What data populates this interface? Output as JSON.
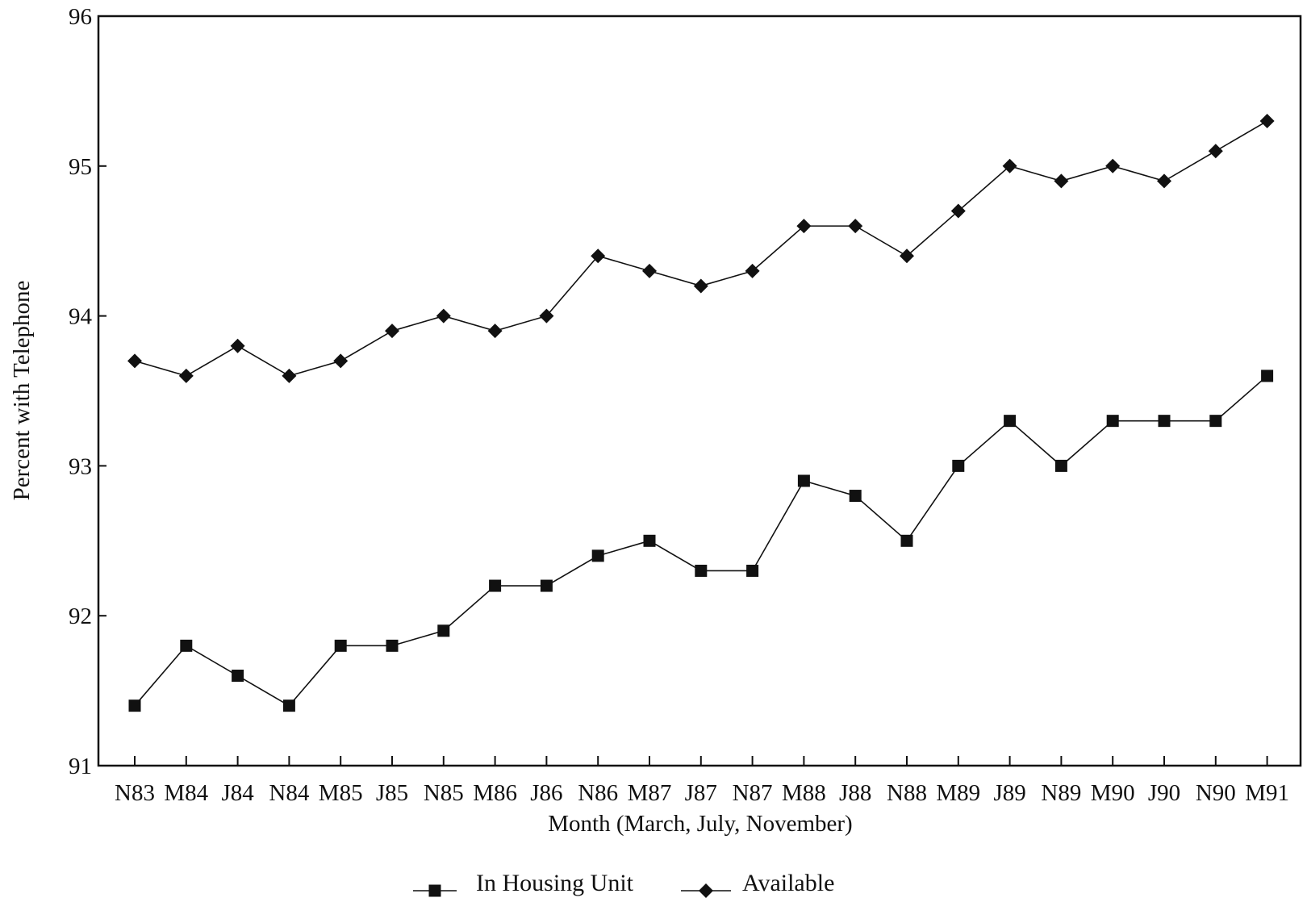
{
  "chart_data": {
    "type": "line",
    "title": "",
    "xlabel": "Month (March, July, November)",
    "ylabel": "Percent with Telephone",
    "ylim": [
      91,
      96
    ],
    "yticks": [
      "91",
      "92",
      "93",
      "94",
      "95",
      "96"
    ],
    "categories": [
      "N83",
      "M84",
      "J84",
      "N84",
      "M85",
      "J85",
      "N85",
      "M86",
      "J86",
      "N86",
      "M87",
      "J87",
      "N87",
      "M88",
      "J88",
      "N88",
      "M89",
      "J89",
      "N89",
      "M90",
      "J90",
      "N90",
      "M91"
    ],
    "series": [
      {
        "name": "In Housing Unit",
        "marker": "square",
        "color": "#111111",
        "values": [
          91.4,
          91.8,
          91.6,
          91.4,
          91.8,
          91.8,
          91.9,
          92.2,
          92.2,
          92.4,
          92.5,
          92.3,
          92.3,
          92.9,
          92.8,
          92.5,
          93.0,
          93.3,
          93.0,
          93.3,
          93.3,
          93.3,
          93.6
        ]
      },
      {
        "name": "Available",
        "marker": "diamond",
        "color": "#111111",
        "values": [
          93.7,
          93.6,
          93.8,
          93.6,
          93.7,
          93.9,
          94.0,
          93.9,
          94.0,
          94.4,
          94.3,
          94.2,
          94.3,
          94.6,
          94.6,
          94.4,
          94.7,
          95.0,
          94.9,
          95.0,
          94.9,
          95.1,
          95.3
        ]
      }
    ],
    "grid": false,
    "legend_position": "bottom-center"
  }
}
